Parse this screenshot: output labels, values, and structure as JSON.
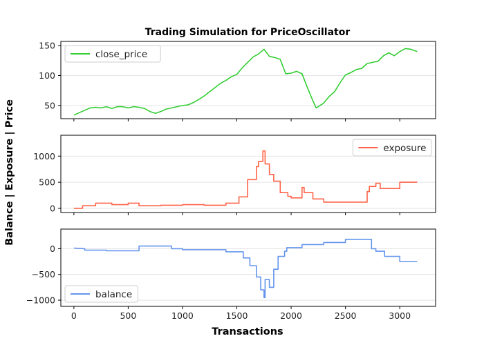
{
  "chart_data": {
    "type": "line",
    "title": "Trading Simulation for PriceOscillator",
    "xlabel": "Transactions",
    "ylabel": "Balance | Exposure | Price",
    "xlim": [
      -120,
      3330
    ],
    "x_ticks": [
      0,
      500,
      1000,
      1500,
      2000,
      2500,
      3000
    ],
    "grid": "horizontal",
    "panels": [
      {
        "series_name": "close_price",
        "color": "#32cd32",
        "legend": "top-left",
        "ylim": [
          28,
          157
        ],
        "y_ticks": [
          50,
          100,
          150
        ],
        "points": [
          [
            0,
            34
          ],
          [
            50,
            38
          ],
          [
            100,
            42
          ],
          [
            150,
            46
          ],
          [
            200,
            47
          ],
          [
            250,
            46
          ],
          [
            300,
            48
          ],
          [
            350,
            45
          ],
          [
            400,
            48
          ],
          [
            450,
            48
          ],
          [
            500,
            46
          ],
          [
            550,
            48
          ],
          [
            600,
            47
          ],
          [
            650,
            45
          ],
          [
            700,
            40
          ],
          [
            750,
            37
          ],
          [
            800,
            40
          ],
          [
            850,
            44
          ],
          [
            900,
            46
          ],
          [
            950,
            48
          ],
          [
            1000,
            50
          ],
          [
            1050,
            51
          ],
          [
            1100,
            55
          ],
          [
            1150,
            60
          ],
          [
            1200,
            66
          ],
          [
            1250,
            73
          ],
          [
            1300,
            80
          ],
          [
            1350,
            87
          ],
          [
            1400,
            92
          ],
          [
            1450,
            98
          ],
          [
            1500,
            102
          ],
          [
            1550,
            113
          ],
          [
            1600,
            122
          ],
          [
            1650,
            131
          ],
          [
            1700,
            136
          ],
          [
            1750,
            144
          ],
          [
            1800,
            132
          ],
          [
            1850,
            130
          ],
          [
            1900,
            127
          ],
          [
            1950,
            103
          ],
          [
            2000,
            104
          ],
          [
            2050,
            107
          ],
          [
            2100,
            103
          ],
          [
            2150,
            80
          ],
          [
            2200,
            58
          ],
          [
            2230,
            46
          ],
          [
            2250,
            48
          ],
          [
            2300,
            54
          ],
          [
            2350,
            65
          ],
          [
            2400,
            73
          ],
          [
            2450,
            88
          ],
          [
            2500,
            101
          ],
          [
            2550,
            105
          ],
          [
            2600,
            110
          ],
          [
            2650,
            112
          ],
          [
            2700,
            120
          ],
          [
            2750,
            122
          ],
          [
            2800,
            124
          ],
          [
            2850,
            133
          ],
          [
            2900,
            138
          ],
          [
            2950,
            133
          ],
          [
            3000,
            140
          ],
          [
            3050,
            145
          ],
          [
            3100,
            144
          ],
          [
            3160,
            140
          ]
        ]
      },
      {
        "series_name": "exposure",
        "color": "#ff6347",
        "legend": "top-right",
        "ylim": [
          -80,
          1400
        ],
        "y_ticks": [
          0,
          500,
          1000
        ],
        "points": [
          [
            0,
            0
          ],
          [
            80,
            0
          ],
          [
            80,
            50
          ],
          [
            200,
            50
          ],
          [
            200,
            100
          ],
          [
            350,
            100
          ],
          [
            350,
            70
          ],
          [
            500,
            70
          ],
          [
            500,
            100
          ],
          [
            600,
            100
          ],
          [
            600,
            50
          ],
          [
            800,
            50
          ],
          [
            800,
            60
          ],
          [
            1000,
            60
          ],
          [
            1000,
            70
          ],
          [
            1200,
            70
          ],
          [
            1200,
            60
          ],
          [
            1400,
            60
          ],
          [
            1400,
            100
          ],
          [
            1520,
            100
          ],
          [
            1520,
            220
          ],
          [
            1600,
            220
          ],
          [
            1600,
            550
          ],
          [
            1680,
            550
          ],
          [
            1680,
            800
          ],
          [
            1700,
            800
          ],
          [
            1700,
            900
          ],
          [
            1740,
            900
          ],
          [
            1740,
            1100
          ],
          [
            1760,
            1100
          ],
          [
            1760,
            850
          ],
          [
            1800,
            850
          ],
          [
            1800,
            650
          ],
          [
            1840,
            650
          ],
          [
            1840,
            520
          ],
          [
            1900,
            520
          ],
          [
            1900,
            300
          ],
          [
            1970,
            300
          ],
          [
            1970,
            230
          ],
          [
            2000,
            230
          ],
          [
            2000,
            200
          ],
          [
            2100,
            200
          ],
          [
            2100,
            400
          ],
          [
            2120,
            400
          ],
          [
            2120,
            300
          ],
          [
            2200,
            300
          ],
          [
            2200,
            180
          ],
          [
            2300,
            180
          ],
          [
            2300,
            120
          ],
          [
            2700,
            120
          ],
          [
            2700,
            320
          ],
          [
            2720,
            320
          ],
          [
            2720,
            420
          ],
          [
            2780,
            420
          ],
          [
            2780,
            480
          ],
          [
            2820,
            480
          ],
          [
            2820,
            380
          ],
          [
            3000,
            380
          ],
          [
            3000,
            500
          ],
          [
            3160,
            500
          ]
        ]
      },
      {
        "series_name": "balance",
        "color": "#6495ed",
        "legend": "bottom-left",
        "ylim": [
          -1120,
          380
        ],
        "y_ticks": [
          0,
          -500,
          -1000
        ],
        "points": [
          [
            0,
            10
          ],
          [
            100,
            0
          ],
          [
            100,
            -30
          ],
          [
            300,
            -30
          ],
          [
            300,
            -40
          ],
          [
            600,
            -40
          ],
          [
            600,
            50
          ],
          [
            900,
            50
          ],
          [
            900,
            0
          ],
          [
            1000,
            0
          ],
          [
            1000,
            -20
          ],
          [
            1400,
            -20
          ],
          [
            1400,
            -60
          ],
          [
            1560,
            -60
          ],
          [
            1560,
            -180
          ],
          [
            1620,
            -180
          ],
          [
            1620,
            -330
          ],
          [
            1680,
            -330
          ],
          [
            1680,
            -550
          ],
          [
            1720,
            -550
          ],
          [
            1720,
            -800
          ],
          [
            1750,
            -800
          ],
          [
            1750,
            -950
          ],
          [
            1760,
            -950
          ],
          [
            1760,
            -600
          ],
          [
            1800,
            -600
          ],
          [
            1800,
            -750
          ],
          [
            1840,
            -750
          ],
          [
            1840,
            -400
          ],
          [
            1880,
            -400
          ],
          [
            1880,
            -150
          ],
          [
            1940,
            -150
          ],
          [
            1940,
            -50
          ],
          [
            1960,
            -50
          ],
          [
            1960,
            20
          ],
          [
            2100,
            20
          ],
          [
            2100,
            80
          ],
          [
            2300,
            80
          ],
          [
            2300,
            120
          ],
          [
            2500,
            120
          ],
          [
            2500,
            180
          ],
          [
            2740,
            180
          ],
          [
            2740,
            0
          ],
          [
            2780,
            0
          ],
          [
            2780,
            -50
          ],
          [
            2860,
            -50
          ],
          [
            2860,
            -150
          ],
          [
            3000,
            -150
          ],
          [
            3000,
            -250
          ],
          [
            3160,
            -250
          ]
        ]
      }
    ]
  }
}
